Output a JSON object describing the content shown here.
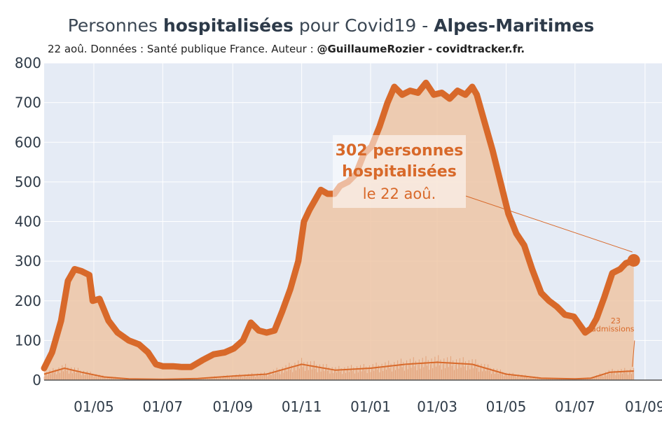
{
  "title": {
    "pre": "Personnes ",
    "bold": "hospitalisées",
    "mid": " pour Covid19 - ",
    "region": "Alpes-Maritimes"
  },
  "subtitle": {
    "text": "22 aoû. Données : Santé publique France. Auteur : ",
    "author": "@GuillaumeRozier - covidtracker.fr."
  },
  "colors": {
    "plot_bg": "#e5ebf5",
    "grid": "#ffffff",
    "line": "#d8692a",
    "fill": "#eec6a4",
    "admissions": "#d8692a"
  },
  "annotation": {
    "line1": "302 personnes",
    "line2": "hospitalisées",
    "line3": "le 22 aoû."
  },
  "admissions_note": {
    "value": "23",
    "label": "admissions"
  },
  "chart_data": {
    "type": "area",
    "title": "Personnes hospitalisées pour Covid19 - Alpes-Maritimes",
    "ylim": [
      0,
      800
    ],
    "yticks": [
      0,
      100,
      200,
      300,
      400,
      500,
      600,
      700,
      800
    ],
    "xticks": [
      {
        "label": "01/05",
        "date": "2020-05-01"
      },
      {
        "label": "01/07",
        "date": "2020-07-01"
      },
      {
        "label": "01/09",
        "date": "2020-09-01"
      },
      {
        "label": "01/11",
        "date": "2020-11-01"
      },
      {
        "label": "01/01",
        "date": "2021-01-01"
      },
      {
        "label": "01/03",
        "date": "2021-03-01"
      },
      {
        "label": "01/05",
        "date": "2021-05-01"
      },
      {
        "label": "01/07",
        "date": "2021-07-01"
      },
      {
        "label": "01/09",
        "date": "2021-09-01"
      }
    ],
    "xrange": [
      "2020-03-18",
      "2021-09-16"
    ],
    "grid": true,
    "series": [
      {
        "name": "",
        "points": [
          [
            "2020-03-18",
            30
          ],
          [
            "2020-03-25",
            70
          ],
          [
            "2020-04-02",
            150
          ],
          [
            "2020-04-08",
            250
          ],
          [
            "2020-04-14",
            280
          ],
          [
            "2020-04-20",
            275
          ],
          [
            "2020-04-27",
            265
          ],
          [
            "2020-04-30",
            200
          ],
          [
            "2020-05-06",
            205
          ],
          [
            "2020-05-14",
            150
          ],
          [
            "2020-05-22",
            120
          ],
          [
            "2020-06-01",
            100
          ],
          [
            "2020-06-10",
            90
          ],
          [
            "2020-06-18",
            70
          ],
          [
            "2020-06-25",
            40
          ],
          [
            "2020-07-01",
            35
          ],
          [
            "2020-07-10",
            35
          ],
          [
            "2020-07-18",
            33
          ],
          [
            "2020-07-26",
            33
          ],
          [
            "2020-08-05",
            50
          ],
          [
            "2020-08-15",
            65
          ],
          [
            "2020-08-25",
            70
          ],
          [
            "2020-09-02",
            80
          ],
          [
            "2020-09-10",
            100
          ],
          [
            "2020-09-17",
            145
          ],
          [
            "2020-09-24",
            125
          ],
          [
            "2020-10-01",
            120
          ],
          [
            "2020-10-08",
            125
          ],
          [
            "2020-10-15",
            175
          ],
          [
            "2020-10-22",
            230
          ],
          [
            "2020-10-29",
            300
          ],
          [
            "2020-11-03",
            400
          ],
          [
            "2020-11-08",
            430
          ],
          [
            "2020-11-14",
            460
          ],
          [
            "2020-11-18",
            480
          ],
          [
            "2020-11-24",
            470
          ],
          [
            "2020-11-30",
            470
          ],
          [
            "2020-12-05",
            490
          ],
          [
            "2020-12-12",
            500
          ],
          [
            "2020-12-19",
            520
          ],
          [
            "2020-12-26",
            570
          ],
          [
            "2021-01-02",
            590
          ],
          [
            "2021-01-09",
            640
          ],
          [
            "2021-01-16",
            700
          ],
          [
            "2021-01-22",
            740
          ],
          [
            "2021-01-29",
            720
          ],
          [
            "2021-02-05",
            730
          ],
          [
            "2021-02-12",
            725
          ],
          [
            "2021-02-19",
            750
          ],
          [
            "2021-02-26",
            720
          ],
          [
            "2021-03-05",
            725
          ],
          [
            "2021-03-12",
            710
          ],
          [
            "2021-03-19",
            730
          ],
          [
            "2021-03-26",
            720
          ],
          [
            "2021-04-01",
            740
          ],
          [
            "2021-04-05",
            720
          ],
          [
            "2021-04-12",
            650
          ],
          [
            "2021-04-19",
            580
          ],
          [
            "2021-04-26",
            500
          ],
          [
            "2021-05-03",
            420
          ],
          [
            "2021-05-10",
            370
          ],
          [
            "2021-05-17",
            340
          ],
          [
            "2021-05-24",
            280
          ],
          [
            "2021-06-01",
            220
          ],
          [
            "2021-06-08",
            200
          ],
          [
            "2021-06-15",
            185
          ],
          [
            "2021-06-22",
            165
          ],
          [
            "2021-06-30",
            160
          ],
          [
            "2021-07-05",
            140
          ],
          [
            "2021-07-10",
            120
          ],
          [
            "2021-07-15",
            130
          ],
          [
            "2021-07-20",
            155
          ],
          [
            "2021-07-27",
            210
          ],
          [
            "2021-08-03",
            270
          ],
          [
            "2021-08-10",
            280
          ],
          [
            "2021-08-15",
            295
          ],
          [
            "2021-08-22",
            302
          ]
        ]
      },
      {
        "name": "",
        "points": [
          [
            "2020-03-18",
            15
          ],
          [
            "2020-04-05",
            30
          ],
          [
            "2020-04-20",
            20
          ],
          [
            "2020-05-10",
            8
          ],
          [
            "2020-06-01",
            3
          ],
          [
            "2020-07-01",
            2
          ],
          [
            "2020-08-01",
            4
          ],
          [
            "2020-09-01",
            10
          ],
          [
            "2020-10-01",
            15
          ],
          [
            "2020-11-01",
            40
          ],
          [
            "2020-12-01",
            25
          ],
          [
            "2021-01-01",
            30
          ],
          [
            "2021-02-01",
            40
          ],
          [
            "2021-03-01",
            45
          ],
          [
            "2021-04-01",
            40
          ],
          [
            "2021-05-01",
            15
          ],
          [
            "2021-06-01",
            5
          ],
          [
            "2021-07-01",
            3
          ],
          [
            "2021-07-15",
            5
          ],
          [
            "2021-08-01",
            20
          ],
          [
            "2021-08-22",
            23
          ]
        ]
      }
    ],
    "last_value": {
      "date": "2021-08-22",
      "value": 302
    }
  }
}
